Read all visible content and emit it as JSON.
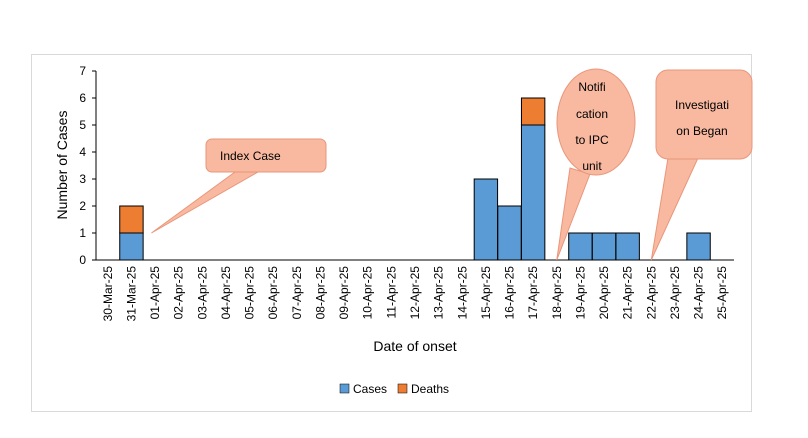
{
  "chart_data": {
    "type": "bar",
    "stacked": true,
    "xlabel": "Date of onset",
    "ylabel": "Number of Cases",
    "ylim": [
      0,
      7
    ],
    "yticks": [
      0,
      1,
      2,
      3,
      4,
      5,
      6,
      7
    ],
    "grid": false,
    "legend_position": "bottom",
    "categories": [
      "30-Mar-25",
      "31-Mar-25",
      "01-Apr-25",
      "02-Apr-25",
      "03-Apr-25",
      "04-Apr-25",
      "05-Apr-25",
      "06-Apr-25",
      "07-Apr-25",
      "08-Apr-25",
      "09-Apr-25",
      "10-Apr-25",
      "11-Apr-25",
      "12-Apr-25",
      "13-Apr-25",
      "14-Apr-25",
      "15-Apr-25",
      "16-Apr-25",
      "17-Apr-25",
      "18-Apr-25",
      "19-Apr-25",
      "20-Apr-25",
      "21-Apr-25",
      "22-Apr-25",
      "23-Apr-25",
      "24-Apr-25",
      "25-Apr-25"
    ],
    "series": [
      {
        "name": "Cases",
        "color": "#5b9bd5",
        "values": [
          0,
          1,
          0,
          0,
          0,
          0,
          0,
          0,
          0,
          0,
          0,
          0,
          0,
          0,
          0,
          0,
          3,
          2,
          5,
          0,
          1,
          1,
          1,
          0,
          0,
          1,
          0
        ]
      },
      {
        "name": "Deaths",
        "color": "#ed7d31",
        "values": [
          0,
          1,
          0,
          0,
          0,
          0,
          0,
          0,
          0,
          0,
          0,
          0,
          0,
          0,
          0,
          0,
          0,
          0,
          1,
          0,
          0,
          0,
          0,
          0,
          0,
          0,
          0
        ]
      }
    ],
    "annotations": [
      {
        "id": "index",
        "text_lines": [
          "Index Case"
        ],
        "points_to": "31-Mar-25",
        "shape": "rounded-rect"
      },
      {
        "id": "notification",
        "text_lines": [
          "Notifi",
          "cation",
          "to IPC",
          "unit"
        ],
        "points_to": "18-Apr-25",
        "shape": "oval"
      },
      {
        "id": "investigation",
        "text_lines": [
          "Investigati",
          "on Began"
        ],
        "points_to": "22-Apr-25",
        "shape": "rounded-rect"
      }
    ],
    "colors": {
      "callout_fill": "#f8b9a0",
      "callout_stroke": "#e9967a",
      "bar_edge": "#000000"
    }
  }
}
